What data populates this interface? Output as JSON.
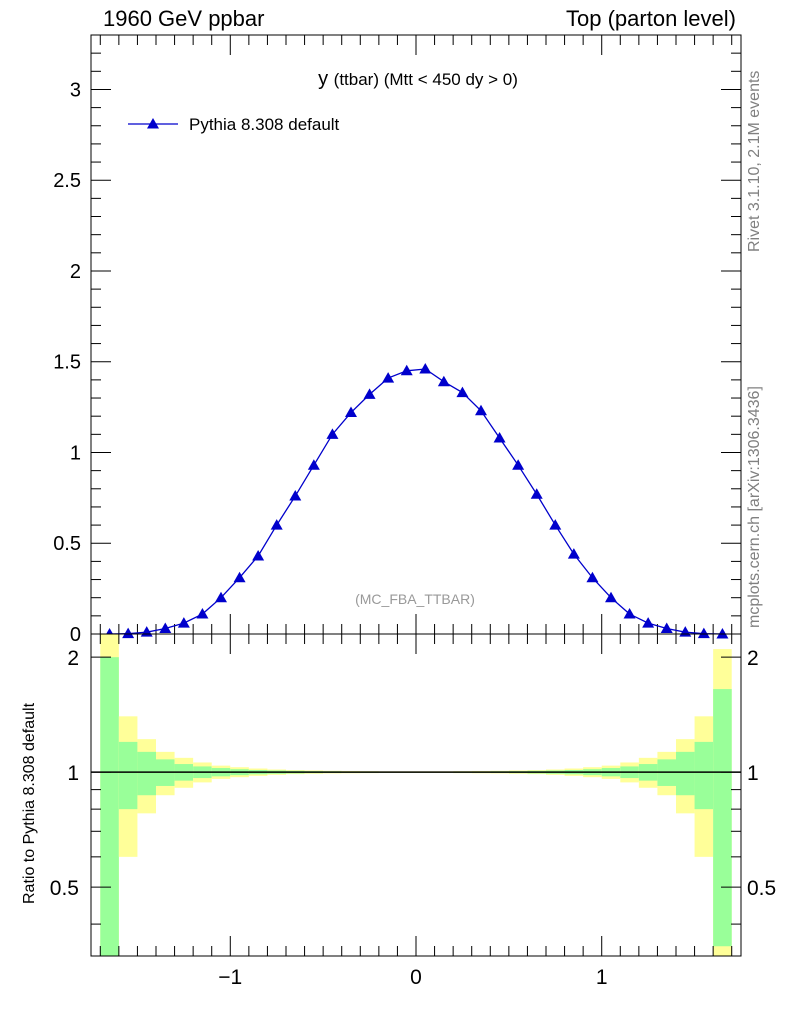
{
  "header": {
    "left": "1960 GeV ppbar",
    "right": "Top (parton level)"
  },
  "side": {
    "rivet": "Rivet 3.1.10,  2.1M events",
    "mcplots": "mcplots.cern.ch [arXiv:1306.3436]"
  },
  "chart_data": [
    {
      "type": "line",
      "title_main": "y",
      "title_rest": "(ttbar) (Mtt < 450 dy > 0)",
      "watermark": "(MC_FBA_TTBAR)",
      "legend": {
        "placement": "top-left"
      },
      "xlim": [
        -1.75,
        1.75
      ],
      "ylim": [
        0,
        3.3
      ],
      "yticks": [
        0,
        0.5,
        1,
        1.5,
        2,
        2.5,
        3
      ],
      "ytick_labels": [
        "0",
        "0.5",
        "1",
        "1.5",
        "2",
        "2.5",
        "3"
      ],
      "series": [
        {
          "name": "Pythia 8.308 default",
          "color": "#0000cc",
          "marker": "triangle-up",
          "x": [
            -1.65,
            -1.55,
            -1.45,
            -1.35,
            -1.25,
            -1.15,
            -1.05,
            -0.95,
            -0.85,
            -0.75,
            -0.65,
            -0.55,
            -0.45,
            -0.35,
            -0.25,
            -0.15,
            -0.05,
            0.05,
            0.15,
            0.25,
            0.35,
            0.45,
            0.55,
            0.65,
            0.75,
            0.85,
            0.95,
            1.05,
            1.15,
            1.25,
            1.35,
            1.45,
            1.55,
            1.65
          ],
          "y": [
            0.0,
            0.002,
            0.01,
            0.03,
            0.06,
            0.11,
            0.2,
            0.31,
            0.43,
            0.6,
            0.76,
            0.93,
            1.1,
            1.22,
            1.32,
            1.41,
            1.45,
            1.46,
            1.39,
            1.33,
            1.23,
            1.08,
            0.93,
            0.77,
            0.6,
            0.44,
            0.31,
            0.2,
            0.11,
            0.06,
            0.03,
            0.01,
            0.002,
            0.0
          ]
        }
      ]
    },
    {
      "type": "area",
      "ylabel": "Ratio to Pythia 8.308 default",
      "xlim": [
        -1.75,
        1.75
      ],
      "ylim": [
        0.33,
        2.3
      ],
      "log_y": true,
      "xticks": [
        -1,
        0,
        1
      ],
      "xtick_labels": [
        "−1",
        "0",
        "1"
      ],
      "yticks": [
        0.5,
        1,
        2
      ],
      "ytick_labels": [
        "0.5",
        "1",
        "2"
      ],
      "reference_line": 1,
      "band_colors": {
        "inner": "#99ff99",
        "outer": "#ffff99"
      },
      "bins": [
        -1.7,
        -1.6,
        -1.5,
        -1.4,
        -1.3,
        -1.2,
        -1.1,
        -1.0,
        -0.9,
        -0.8,
        -0.7,
        -0.6,
        -0.5,
        -0.4,
        -0.3,
        -0.2,
        -0.1,
        0.0,
        0.1,
        0.2,
        0.3,
        0.4,
        0.5,
        0.6,
        0.7,
        0.8,
        0.9,
        1.0,
        1.1,
        1.2,
        1.3,
        1.4,
        1.5,
        1.6,
        1.7
      ],
      "inner_half_width": [
        1.0,
        0.2,
        0.13,
        0.08,
        0.05,
        0.035,
        0.025,
        0.018,
        0.013,
        0.01,
        0.008,
        0.006,
        0.005,
        0.004,
        0.004,
        0.003,
        0.003,
        0.003,
        0.003,
        0.004,
        0.004,
        0.005,
        0.006,
        0.008,
        0.01,
        0.013,
        0.018,
        0.025,
        0.035,
        0.05,
        0.08,
        0.13,
        0.2,
        0.65
      ],
      "outer_half_width": [
        1.35,
        0.4,
        0.22,
        0.13,
        0.09,
        0.06,
        0.04,
        0.03,
        0.022,
        0.016,
        0.012,
        0.01,
        0.008,
        0.007,
        0.006,
        0.005,
        0.005,
        0.005,
        0.005,
        0.006,
        0.007,
        0.008,
        0.01,
        0.012,
        0.016,
        0.022,
        0.03,
        0.04,
        0.06,
        0.09,
        0.13,
        0.22,
        0.4,
        1.1
      ]
    }
  ]
}
